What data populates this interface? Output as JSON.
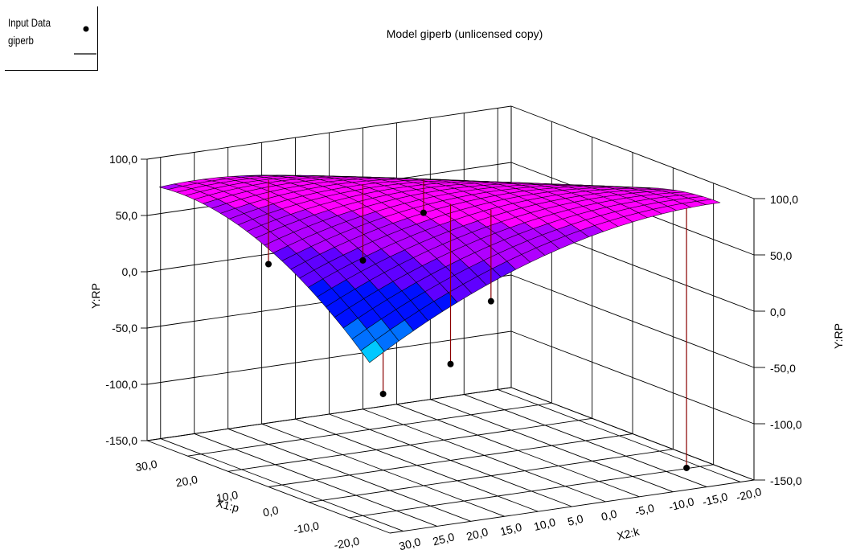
{
  "chart_data": {
    "type": "surface3d",
    "title": "Model giperb (unlicensed copy)",
    "legend": {
      "position": "top-left",
      "entries": [
        {
          "label": "Input Data",
          "marker": "point"
        },
        {
          "label": "giperb",
          "marker": "line"
        }
      ]
    },
    "x1_axis": {
      "label": "X1:p",
      "range": [
        -25,
        35
      ],
      "ticks": [
        "30,0",
        "20,0",
        "10,0",
        "0,0",
        "-10,0",
        "-20,0"
      ],
      "tick_values": [
        30,
        20,
        10,
        0,
        -10,
        -20
      ]
    },
    "x2_axis": {
      "label": "X2:k",
      "range": [
        -22,
        32
      ],
      "ticks": [
        "30,0",
        "25,0",
        "20,0",
        "15,0",
        "10,0",
        "5,0",
        "0,0",
        "-5,0",
        "-10,0",
        "-15,0",
        "-20,0"
      ],
      "tick_values": [
        30,
        25,
        20,
        15,
        10,
        5,
        0,
        -5,
        -10,
        -15,
        -20
      ]
    },
    "y_axis": {
      "label": "Y:RP",
      "range": [
        -150,
        100
      ],
      "ticks": [
        "100,0",
        "50,0",
        "0,0",
        "-50,0",
        "-100,0",
        "-150,0"
      ],
      "tick_values": [
        100,
        50,
        0,
        -50,
        -100,
        -150
      ]
    },
    "grid": true,
    "surface_colormap": [
      "#ff0000",
      "#ff8000",
      "#ffd000",
      "#c8ff00",
      "#50ff00",
      "#00ff60",
      "#00ffc8",
      "#00c8ff",
      "#0070ff",
      "#0010ff",
      "#6000ff",
      "#b000ff",
      "#ff00ff"
    ],
    "input_data": [
      {
        "x1": -20,
        "x2": 30,
        "y": -35
      },
      {
        "x1": 25,
        "x2": 20,
        "y": 10
      },
      {
        "x1": 15,
        "x2": 12,
        "y": 20
      },
      {
        "x1": 20,
        "x2": 0,
        "y": 45
      },
      {
        "x1": -5,
        "x2": 5,
        "y": 5
      },
      {
        "x1": 0,
        "x2": 8,
        "y": -55
      },
      {
        "x1": -20,
        "x2": -15,
        "y": -140
      }
    ]
  }
}
